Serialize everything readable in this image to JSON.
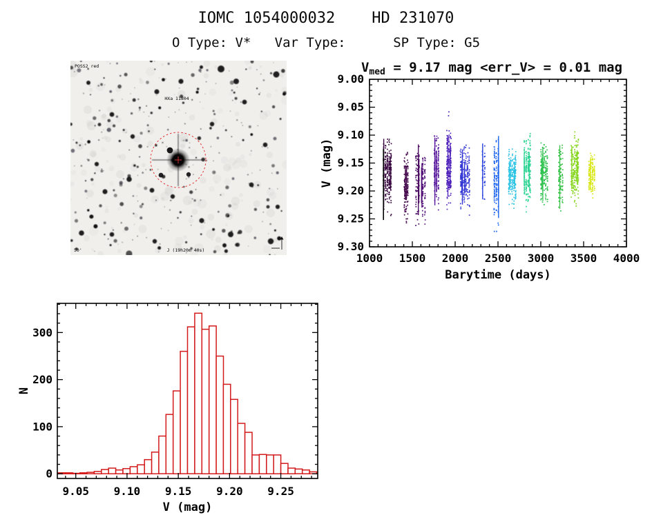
{
  "page": {
    "title": "IOMC 1054000032    HD 231070",
    "subtitle": "O Type: V*   Var Type:      SP Type: G5"
  },
  "finder_chart": {
    "survey_label": "POSS2 red",
    "star_label": "HXa 11804",
    "coord_label": "J (19h20m 40s)",
    "scale_label": "50'",
    "background": "#f0efec",
    "circle_color": "#e23333",
    "annotation_color": "#cc2222",
    "corner_text_color": "#2a3a7a",
    "seed": 7
  },
  "chart_data": [
    {
      "type": "scatter",
      "name": "light-curve",
      "title": {
        "base": "V",
        "sub": "med",
        "rest": " = 9.17 mag <err_V> = 0.01 mag"
      },
      "v_median_mag": 9.17,
      "mean_err_v_mag": 0.01,
      "xlabel": "Barytime (days)",
      "ylabel": "V (mag)",
      "xlim": [
        1000,
        4000
      ],
      "ylim_top": 9.0,
      "ylim_bottom": 9.3,
      "xticks": [
        "1000",
        "1500",
        "2000",
        "2500",
        "3000",
        "3500",
        "4000"
      ],
      "yticks": [
        "9.00",
        "9.05",
        "9.10",
        "9.15",
        "9.20",
        "9.25",
        "9.30"
      ],
      "x_minor_step": 100,
      "y_minor_step": 0.01,
      "grid": false,
      "point_seed": 11,
      "clusters": [
        {
          "t0": 1148,
          "t1": 1255,
          "color": "#38063f",
          "v_mean": 9.168,
          "v_sigma": 0.027,
          "v_min": 9.105,
          "v_max": 9.262,
          "n": 260,
          "streaks": 3
        },
        {
          "t0": 1393,
          "t1": 1448,
          "color": "#45094d",
          "v_mean": 9.185,
          "v_sigma": 0.031,
          "v_min": 9.12,
          "v_max": 9.275,
          "n": 110,
          "streaks": 2
        },
        {
          "t0": 1528,
          "t1": 1578,
          "color": "#4c0d63",
          "v_mean": 9.18,
          "v_sigma": 0.034,
          "v_min": 9.115,
          "v_max": 9.265,
          "n": 75,
          "streaks": 2
        },
        {
          "t0": 1603,
          "t1": 1652,
          "color": "#521179",
          "v_mean": 9.19,
          "v_sigma": 0.03,
          "v_min": 9.135,
          "v_max": 9.265,
          "n": 80,
          "streaks": 2
        },
        {
          "t0": 1743,
          "t1": 1808,
          "color": "#58189c",
          "v_mean": 9.165,
          "v_sigma": 0.028,
          "v_min": 9.075,
          "v_max": 9.235,
          "n": 150,
          "streaks": 3
        },
        {
          "t0": 1888,
          "t1": 1952,
          "color": "#5023bb",
          "v_mean": 9.155,
          "v_sigma": 0.034,
          "v_min": 9.032,
          "v_max": 9.235,
          "n": 140,
          "streaks": 2
        },
        {
          "t0": 2048,
          "t1": 2168,
          "color": "#3134d4",
          "v_mean": 9.175,
          "v_sigma": 0.026,
          "v_min": 9.11,
          "v_max": 9.245,
          "n": 200,
          "streaks": 3
        },
        {
          "t0": 2303,
          "t1": 2348,
          "color": "#2840dd",
          "v_mean": 9.165,
          "v_sigma": 0.025,
          "v_min": 9.115,
          "v_max": 9.215,
          "n": 40,
          "streaks": 1
        },
        {
          "t0": 2440,
          "t1": 2508,
          "color": "#1c64ef",
          "v_mean": 9.175,
          "v_sigma": 0.033,
          "v_min": 9.095,
          "v_max": 9.285,
          "n": 160,
          "streaks": 2
        },
        {
          "t0": 2612,
          "t1": 2708,
          "color": "#28c2e4",
          "v_mean": 9.172,
          "v_sigma": 0.023,
          "v_min": 9.115,
          "v_max": 9.235,
          "n": 190,
          "streaks": 2
        },
        {
          "t0": 2792,
          "t1": 2878,
          "color": "#2bd492",
          "v_mean": 9.162,
          "v_sigma": 0.03,
          "v_min": 9.075,
          "v_max": 9.265,
          "n": 190,
          "streaks": 2
        },
        {
          "t0": 2988,
          "t1": 3078,
          "color": "#2ec24e",
          "v_mean": 9.168,
          "v_sigma": 0.025,
          "v_min": 9.105,
          "v_max": 9.235,
          "n": 160,
          "streaks": 2
        },
        {
          "t0": 3193,
          "t1": 3258,
          "color": "#38c24a",
          "v_mean": 9.175,
          "v_sigma": 0.026,
          "v_min": 9.115,
          "v_max": 9.235,
          "n": 80,
          "streaks": 1
        },
        {
          "t0": 3342,
          "t1": 3438,
          "color": "#85d51d",
          "v_mean": 9.158,
          "v_sigma": 0.027,
          "v_min": 9.085,
          "v_max": 9.235,
          "n": 190,
          "streaks": 2
        },
        {
          "t0": 3548,
          "t1": 3628,
          "color": "#d8e713",
          "v_mean": 9.17,
          "v_sigma": 0.018,
          "v_min": 9.13,
          "v_max": 9.215,
          "n": 130,
          "streaks": 1
        }
      ],
      "line_feature": {
        "t": 1163,
        "v0": 9.125,
        "v1": 9.252,
        "color": "#000000"
      }
    },
    {
      "type": "bar",
      "name": "v-mag-histogram",
      "title": "",
      "xlabel": "V (mag)",
      "ylabel": "N",
      "xlim": [
        9.032,
        9.286
      ],
      "ylim": [
        -10,
        362
      ],
      "xticks": [
        "9.05",
        "9.10",
        "9.15",
        "9.20",
        "9.25"
      ],
      "yticks": [
        "0",
        "100",
        "200",
        "300"
      ],
      "x_minor_step": 0.01,
      "y_minor_step": 20,
      "grid": false,
      "bin_start": 9.033,
      "bin_width": 0.007,
      "values": [
        2,
        2,
        1,
        2,
        3,
        5,
        9,
        12,
        8,
        11,
        15,
        19,
        30,
        46,
        80,
        126,
        176,
        260,
        312,
        341,
        307,
        314,
        250,
        190,
        158,
        107,
        88,
        40,
        41,
        40,
        40,
        22,
        12,
        10,
        8,
        4
      ],
      "bar_color": "#d31a1a",
      "bar_fill": "#ffffff"
    }
  ]
}
